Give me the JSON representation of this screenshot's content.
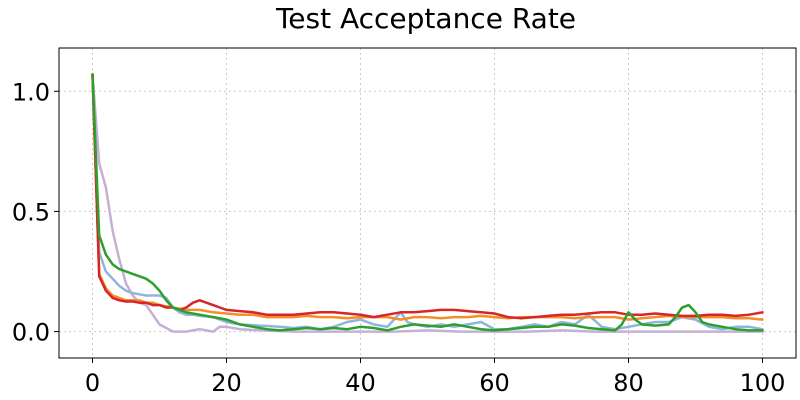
{
  "chart_data": {
    "type": "line",
    "title": "Test Acceptance Rate",
    "xlabel": "",
    "ylabel": "",
    "xlim": [
      -5,
      105
    ],
    "ylim": [
      -0.11,
      1.18
    ],
    "xticks": [
      0,
      20,
      40,
      60,
      80,
      100
    ],
    "yticks": [
      0.0,
      0.5,
      1.0
    ],
    "xtick_labels": [
      "0",
      "20",
      "40",
      "60",
      "80",
      "100"
    ],
    "ytick_labels": [
      "0.0",
      "0.5",
      "1.0"
    ],
    "grid": true,
    "legend": "none",
    "series": [
      {
        "color": "#c5b0d5",
        "points": [
          [
            0,
            1.07
          ],
          [
            1,
            0.7
          ],
          [
            2,
            0.6
          ],
          [
            3,
            0.42
          ],
          [
            4,
            0.3
          ],
          [
            5,
            0.2
          ],
          [
            6,
            0.15
          ],
          [
            7,
            0.12
          ],
          [
            8,
            0.11
          ],
          [
            9,
            0.07
          ],
          [
            10,
            0.03
          ],
          [
            11,
            0.015
          ],
          [
            12,
            0.0
          ],
          [
            13,
            0.0
          ],
          [
            14,
            0.0
          ],
          [
            15,
            0.005
          ],
          [
            16,
            0.01
          ],
          [
            17,
            0.005
          ],
          [
            18,
            0.0
          ],
          [
            19,
            0.02
          ],
          [
            20,
            0.02
          ],
          [
            22,
            0.01
          ],
          [
            25,
            0.005
          ],
          [
            30,
            0.0
          ],
          [
            35,
            0.0
          ],
          [
            40,
            0.0
          ],
          [
            45,
            0.0
          ],
          [
            50,
            0.005
          ],
          [
            55,
            0.0
          ],
          [
            60,
            0.0
          ],
          [
            65,
            0.0
          ],
          [
            70,
            0.005
          ],
          [
            75,
            0.0
          ],
          [
            80,
            0.0
          ],
          [
            85,
            0.0
          ],
          [
            90,
            0.0
          ],
          [
            95,
            0.0
          ],
          [
            100,
            0.0
          ]
        ]
      },
      {
        "color": "#8fb5dc",
        "points": [
          [
            0,
            1.07
          ],
          [
            1,
            0.33
          ],
          [
            2,
            0.25
          ],
          [
            3,
            0.22
          ],
          [
            4,
            0.19
          ],
          [
            5,
            0.17
          ],
          [
            6,
            0.16
          ],
          [
            7,
            0.155
          ],
          [
            8,
            0.15
          ],
          [
            9,
            0.15
          ],
          [
            10,
            0.15
          ],
          [
            11,
            0.14
          ],
          [
            12,
            0.1
          ],
          [
            13,
            0.08
          ],
          [
            14,
            0.07
          ],
          [
            15,
            0.07
          ],
          [
            16,
            0.065
          ],
          [
            18,
            0.06
          ],
          [
            20,
            0.04
          ],
          [
            22,
            0.03
          ],
          [
            25,
            0.025
          ],
          [
            28,
            0.02
          ],
          [
            30,
            0.015
          ],
          [
            32,
            0.02
          ],
          [
            34,
            0.01
          ],
          [
            36,
            0.02
          ],
          [
            38,
            0.04
          ],
          [
            40,
            0.05
          ],
          [
            42,
            0.03
          ],
          [
            44,
            0.02
          ],
          [
            45,
            0.05
          ],
          [
            46,
            0.08
          ],
          [
            47,
            0.04
          ],
          [
            48,
            0.03
          ],
          [
            50,
            0.02
          ],
          [
            52,
            0.03
          ],
          [
            54,
            0.02
          ],
          [
            56,
            0.03
          ],
          [
            58,
            0.04
          ],
          [
            60,
            0.01
          ],
          [
            62,
            0.01
          ],
          [
            64,
            0.02
          ],
          [
            66,
            0.03
          ],
          [
            68,
            0.02
          ],
          [
            70,
            0.04
          ],
          [
            72,
            0.03
          ],
          [
            74,
            0.07
          ],
          [
            76,
            0.02
          ],
          [
            78,
            0.01
          ],
          [
            80,
            0.02
          ],
          [
            82,
            0.03
          ],
          [
            84,
            0.04
          ],
          [
            86,
            0.04
          ],
          [
            88,
            0.06
          ],
          [
            90,
            0.05
          ],
          [
            92,
            0.02
          ],
          [
            94,
            0.01
          ],
          [
            96,
            0.02
          ],
          [
            98,
            0.02
          ],
          [
            100,
            0.01
          ]
        ]
      },
      {
        "color": "#f28e2b",
        "points": [
          [
            0,
            1.07
          ],
          [
            1,
            0.24
          ],
          [
            2,
            0.18
          ],
          [
            3,
            0.15
          ],
          [
            4,
            0.14
          ],
          [
            5,
            0.13
          ],
          [
            6,
            0.13
          ],
          [
            7,
            0.13
          ],
          [
            8,
            0.12
          ],
          [
            9,
            0.12
          ],
          [
            10,
            0.11
          ],
          [
            12,
            0.1
          ],
          [
            14,
            0.09
          ],
          [
            16,
            0.09
          ],
          [
            18,
            0.08
          ],
          [
            20,
            0.075
          ],
          [
            22,
            0.07
          ],
          [
            24,
            0.07
          ],
          [
            26,
            0.06
          ],
          [
            28,
            0.06
          ],
          [
            30,
            0.06
          ],
          [
            32,
            0.065
          ],
          [
            34,
            0.06
          ],
          [
            36,
            0.06
          ],
          [
            38,
            0.055
          ],
          [
            40,
            0.06
          ],
          [
            42,
            0.06
          ],
          [
            44,
            0.06
          ],
          [
            46,
            0.05
          ],
          [
            48,
            0.06
          ],
          [
            50,
            0.06
          ],
          [
            52,
            0.055
          ],
          [
            54,
            0.06
          ],
          [
            56,
            0.06
          ],
          [
            58,
            0.065
          ],
          [
            60,
            0.06
          ],
          [
            62,
            0.055
          ],
          [
            64,
            0.06
          ],
          [
            66,
            0.06
          ],
          [
            68,
            0.06
          ],
          [
            70,
            0.06
          ],
          [
            72,
            0.055
          ],
          [
            74,
            0.06
          ],
          [
            76,
            0.06
          ],
          [
            78,
            0.06
          ],
          [
            80,
            0.05
          ],
          [
            82,
            0.055
          ],
          [
            84,
            0.06
          ],
          [
            86,
            0.065
          ],
          [
            88,
            0.06
          ],
          [
            90,
            0.06
          ],
          [
            92,
            0.06
          ],
          [
            94,
            0.06
          ],
          [
            96,
            0.055
          ],
          [
            98,
            0.055
          ],
          [
            100,
            0.05
          ]
        ]
      },
      {
        "color": "#d62728",
        "points": [
          [
            0,
            1.07
          ],
          [
            1,
            0.23
          ],
          [
            2,
            0.17
          ],
          [
            3,
            0.14
          ],
          [
            4,
            0.13
          ],
          [
            5,
            0.125
          ],
          [
            6,
            0.125
          ],
          [
            7,
            0.12
          ],
          [
            8,
            0.12
          ],
          [
            9,
            0.11
          ],
          [
            10,
            0.11
          ],
          [
            11,
            0.1
          ],
          [
            12,
            0.1
          ],
          [
            13,
            0.09
          ],
          [
            14,
            0.1
          ],
          [
            15,
            0.12
          ],
          [
            16,
            0.13
          ],
          [
            17,
            0.12
          ],
          [
            18,
            0.11
          ],
          [
            19,
            0.1
          ],
          [
            20,
            0.09
          ],
          [
            22,
            0.085
          ],
          [
            24,
            0.08
          ],
          [
            26,
            0.07
          ],
          [
            28,
            0.07
          ],
          [
            30,
            0.07
          ],
          [
            32,
            0.075
          ],
          [
            34,
            0.08
          ],
          [
            36,
            0.08
          ],
          [
            38,
            0.075
          ],
          [
            40,
            0.07
          ],
          [
            42,
            0.06
          ],
          [
            44,
            0.07
          ],
          [
            46,
            0.08
          ],
          [
            48,
            0.08
          ],
          [
            50,
            0.085
          ],
          [
            52,
            0.09
          ],
          [
            54,
            0.09
          ],
          [
            56,
            0.085
          ],
          [
            58,
            0.08
          ],
          [
            60,
            0.075
          ],
          [
            62,
            0.06
          ],
          [
            64,
            0.055
          ],
          [
            66,
            0.06
          ],
          [
            68,
            0.065
          ],
          [
            70,
            0.07
          ],
          [
            72,
            0.07
          ],
          [
            74,
            0.075
          ],
          [
            76,
            0.08
          ],
          [
            78,
            0.08
          ],
          [
            80,
            0.07
          ],
          [
            82,
            0.07
          ],
          [
            84,
            0.075
          ],
          [
            86,
            0.07
          ],
          [
            88,
            0.065
          ],
          [
            90,
            0.065
          ],
          [
            92,
            0.07
          ],
          [
            94,
            0.07
          ],
          [
            96,
            0.065
          ],
          [
            98,
            0.07
          ],
          [
            100,
            0.08
          ]
        ]
      },
      {
        "color": "#2ca02c",
        "points": [
          [
            0,
            1.07
          ],
          [
            1,
            0.4
          ],
          [
            2,
            0.32
          ],
          [
            3,
            0.28
          ],
          [
            4,
            0.26
          ],
          [
            5,
            0.25
          ],
          [
            6,
            0.24
          ],
          [
            7,
            0.23
          ],
          [
            8,
            0.22
          ],
          [
            9,
            0.2
          ],
          [
            10,
            0.17
          ],
          [
            11,
            0.13
          ],
          [
            12,
            0.1
          ],
          [
            13,
            0.09
          ],
          [
            14,
            0.08
          ],
          [
            16,
            0.07
          ],
          [
            18,
            0.06
          ],
          [
            20,
            0.05
          ],
          [
            22,
            0.03
          ],
          [
            24,
            0.02
          ],
          [
            26,
            0.01
          ],
          [
            28,
            0.005
          ],
          [
            30,
            0.01
          ],
          [
            32,
            0.015
          ],
          [
            34,
            0.01
          ],
          [
            36,
            0.015
          ],
          [
            38,
            0.01
          ],
          [
            40,
            0.02
          ],
          [
            42,
            0.015
          ],
          [
            44,
            0.005
          ],
          [
            46,
            0.02
          ],
          [
            48,
            0.03
          ],
          [
            50,
            0.025
          ],
          [
            52,
            0.02
          ],
          [
            54,
            0.03
          ],
          [
            56,
            0.02
          ],
          [
            58,
            0.01
          ],
          [
            60,
            0.005
          ],
          [
            62,
            0.01
          ],
          [
            64,
            0.015
          ],
          [
            66,
            0.02
          ],
          [
            68,
            0.02
          ],
          [
            70,
            0.03
          ],
          [
            72,
            0.025
          ],
          [
            74,
            0.015
          ],
          [
            76,
            0.01
          ],
          [
            78,
            0.005
          ],
          [
            79,
            0.03
          ],
          [
            80,
            0.08
          ],
          [
            81,
            0.05
          ],
          [
            82,
            0.03
          ],
          [
            84,
            0.025
          ],
          [
            86,
            0.03
          ],
          [
            87,
            0.06
          ],
          [
            88,
            0.1
          ],
          [
            89,
            0.11
          ],
          [
            90,
            0.08
          ],
          [
            91,
            0.04
          ],
          [
            92,
            0.03
          ],
          [
            94,
            0.02
          ],
          [
            96,
            0.01
          ],
          [
            98,
            0.005
          ],
          [
            100,
            0.005
          ]
        ]
      }
    ]
  }
}
